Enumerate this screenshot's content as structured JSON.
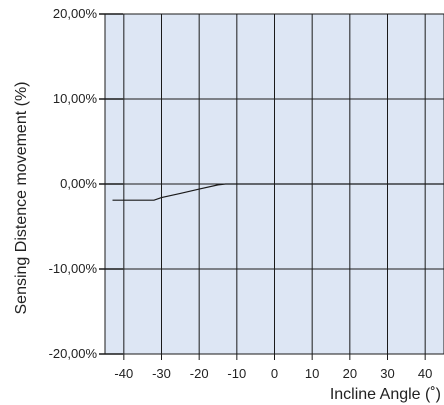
{
  "chart_data": {
    "type": "line",
    "title": "",
    "xlabel": "Incline Angle (˚)",
    "ylabel": "Sensing Distence movement (%)",
    "xlim": [
      -45,
      45
    ],
    "ylim": [
      -20,
      20
    ],
    "x_ticks": [
      -40,
      -30,
      -20,
      -10,
      0,
      10,
      20,
      30,
      40
    ],
    "x_tick_labels": [
      "-40",
      "-30",
      "-20",
      "-10",
      "0",
      "10",
      "20",
      "30",
      "40"
    ],
    "y_ticks": [
      20,
      10,
      0,
      -10,
      -20
    ],
    "y_tick_labels": [
      "20,00%",
      "10,00%",
      "0,00%",
      "-10,00%",
      "-20,00%"
    ],
    "grid": true,
    "colors": {
      "plot_background": "#dde6f4",
      "grid": "#1a1a1a",
      "line": "#1a1a1a"
    },
    "series": [
      {
        "x": [
          -43,
          -40,
          -35,
          -32,
          -30,
          -25,
          -20,
          -15,
          -13,
          -10,
          -5,
          0,
          10,
          20,
          30,
          40,
          45
        ],
        "y": [
          -1.9,
          -1.9,
          -1.9,
          -1.9,
          -1.6,
          -1.1,
          -0.6,
          -0.1,
          0,
          0,
          0,
          0,
          0,
          0,
          0,
          0,
          0
        ]
      }
    ]
  }
}
